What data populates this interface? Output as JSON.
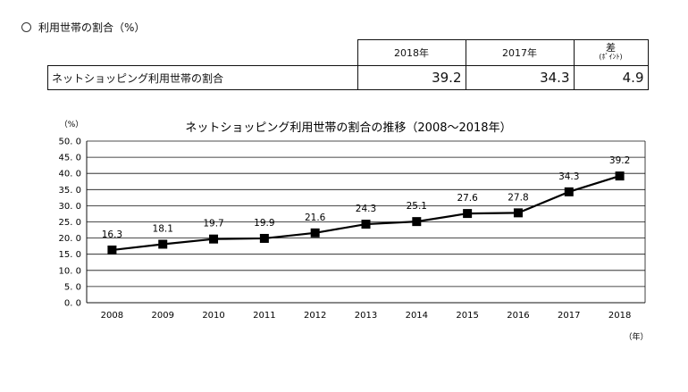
{
  "heading": "利用世帯の割合（%）",
  "table": {
    "columns": [
      "2018年",
      "2017年"
    ],
    "diff_header": "差",
    "diff_sub": "(ﾎﾟｲﾝﾄ)",
    "row_label": "ネットショッピング利用世帯の割合",
    "values": [
      "39.2",
      "34.3",
      "4.9"
    ]
  },
  "chart_data": {
    "type": "line",
    "title": "ネットショッピング利用世帯の割合の推移（2008～2018年）",
    "ylabel": "（%）",
    "xlabel": "（年）",
    "categories": [
      "2008",
      "2009",
      "2010",
      "2011",
      "2012",
      "2013",
      "2014",
      "2015",
      "2016",
      "2017",
      "2018"
    ],
    "values": [
      16.3,
      18.1,
      19.7,
      19.9,
      21.6,
      24.3,
      25.1,
      27.6,
      27.8,
      34.3,
      39.2
    ],
    "ylim": [
      0,
      50
    ],
    "yticks": [
      "50. 0",
      "45. 0",
      "40. 0",
      "35. 0",
      "30. 0",
      "25. 0",
      "20. 0",
      "15. 0",
      "10. 0",
      "5. 0",
      "0. 0"
    ],
    "grid": true,
    "marker": "square",
    "line_color": "#000000"
  }
}
